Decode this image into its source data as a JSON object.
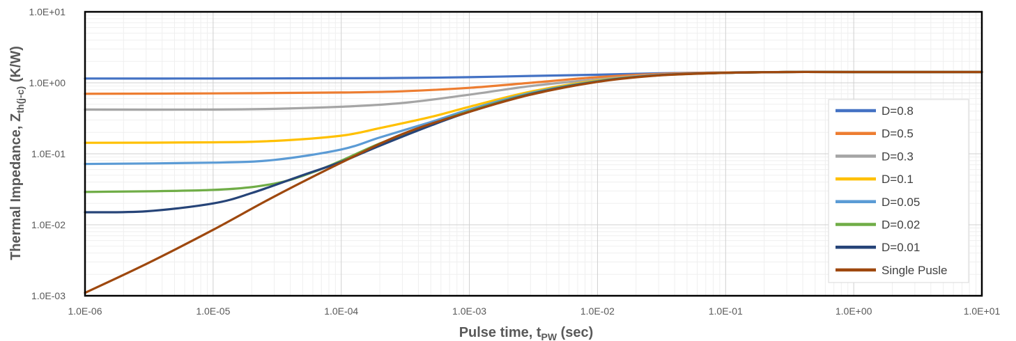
{
  "chart_data": {
    "type": "line",
    "title": "",
    "xlabel": {
      "main": "Pulse time, t",
      "sub": "PW",
      "unit": " (sec)"
    },
    "ylabel": {
      "main": "Thermal Impedance, Z",
      "sub": "th(j-c)",
      "unit": " (K/W)"
    },
    "x_scale": "log",
    "y_scale": "log",
    "xlim": [
      1e-06,
      10
    ],
    "ylim": [
      0.001,
      10
    ],
    "x_ticks": [
      1e-06,
      1e-05,
      0.0001,
      0.001,
      0.01,
      0.1,
      1,
      10
    ],
    "x_tick_labels": [
      "1.0E-06",
      "1.0E-05",
      "1.0E-04",
      "1.0E-03",
      "1.0E-02",
      "1.0E-01",
      "1.0E+00",
      "1.0E+01"
    ],
    "y_ticks": [
      0.001,
      0.01,
      0.1,
      1,
      10
    ],
    "y_tick_labels": [
      "1.0E-03",
      "1.0E-02",
      "1.0E-01",
      "1.0E+00",
      "1.0E+01"
    ],
    "grid": true,
    "legend_position": "right",
    "series": [
      {
        "name": "D=0.8",
        "color": "#4472C4",
        "x": [
          1e-06,
          1e-05,
          0.0001,
          0.0003,
          0.001,
          0.003,
          0.01,
          0.03,
          0.1,
          0.3,
          1,
          10
        ],
        "y": [
          1.15,
          1.15,
          1.16,
          1.17,
          1.2,
          1.25,
          1.3,
          1.36,
          1.4,
          1.42,
          1.42,
          1.42
        ]
      },
      {
        "name": "D=0.5",
        "color": "#ED7D31",
        "x": [
          1e-06,
          1e-05,
          0.0001,
          0.0003,
          0.001,
          0.003,
          0.01,
          0.03,
          0.1,
          0.3,
          1,
          10
        ],
        "y": [
          0.7,
          0.71,
          0.73,
          0.76,
          0.85,
          1.0,
          1.2,
          1.33,
          1.4,
          1.42,
          1.42,
          1.42
        ]
      },
      {
        "name": "D=0.3",
        "color": "#A5A5A5",
        "x": [
          1e-06,
          1e-05,
          3e-05,
          0.0001,
          0.0003,
          0.001,
          0.003,
          0.01,
          0.03,
          0.1,
          0.3,
          1,
          10
        ],
        "y": [
          0.42,
          0.42,
          0.43,
          0.46,
          0.52,
          0.68,
          0.9,
          1.12,
          1.3,
          1.38,
          1.42,
          1.42,
          1.42
        ]
      },
      {
        "name": "D=0.1",
        "color": "#FFC000",
        "x": [
          1e-06,
          1e-05,
          3e-05,
          0.0001,
          0.0002,
          0.0005,
          0.001,
          0.003,
          0.01,
          0.03,
          0.1,
          0.3,
          1,
          10
        ],
        "y": [
          0.143,
          0.145,
          0.152,
          0.18,
          0.23,
          0.33,
          0.46,
          0.75,
          1.08,
          1.28,
          1.38,
          1.42,
          1.42,
          1.42
        ]
      },
      {
        "name": "D=0.05",
        "color": "#5B9BD5",
        "x": [
          1e-06,
          1e-05,
          3e-05,
          0.0001,
          0.0002,
          0.0005,
          0.001,
          0.003,
          0.01,
          0.03,
          0.1,
          0.3,
          1,
          10
        ],
        "y": [
          0.072,
          0.075,
          0.082,
          0.115,
          0.17,
          0.28,
          0.42,
          0.72,
          1.06,
          1.28,
          1.38,
          1.42,
          1.42,
          1.42
        ]
      },
      {
        "name": "D=0.02",
        "color": "#70AD47",
        "x": [
          1e-06,
          1e-05,
          3e-05,
          6e-05,
          0.0001,
          0.0002,
          0.0005,
          0.001,
          0.003,
          0.01,
          0.03,
          0.1,
          0.3,
          1,
          10
        ],
        "y": [
          0.029,
          0.031,
          0.038,
          0.055,
          0.08,
          0.14,
          0.26,
          0.4,
          0.7,
          1.05,
          1.28,
          1.38,
          1.42,
          1.42,
          1.42
        ]
      },
      {
        "name": "D=0.01",
        "color": "#264478",
        "x": [
          1e-06,
          3e-06,
          1e-05,
          2e-05,
          5e-05,
          0.0001,
          0.0002,
          0.0005,
          0.001,
          0.003,
          0.01,
          0.03,
          0.1,
          0.3,
          1,
          10
        ],
        "y": [
          0.015,
          0.0155,
          0.02,
          0.028,
          0.05,
          0.077,
          0.13,
          0.25,
          0.39,
          0.69,
          1.04,
          1.28,
          1.38,
          1.42,
          1.42,
          1.42
        ]
      },
      {
        "name": "Single Pusle",
        "color": "#9E480E",
        "x": [
          1e-06,
          3e-06,
          1e-05,
          3e-05,
          0.0001,
          0.0003,
          0.001,
          0.003,
          0.01,
          0.03,
          0.1,
          0.3,
          1,
          10
        ],
        "y": [
          0.0011,
          0.0028,
          0.0085,
          0.025,
          0.075,
          0.19,
          0.39,
          0.68,
          1.03,
          1.27,
          1.38,
          1.42,
          1.42,
          1.42
        ]
      }
    ]
  }
}
